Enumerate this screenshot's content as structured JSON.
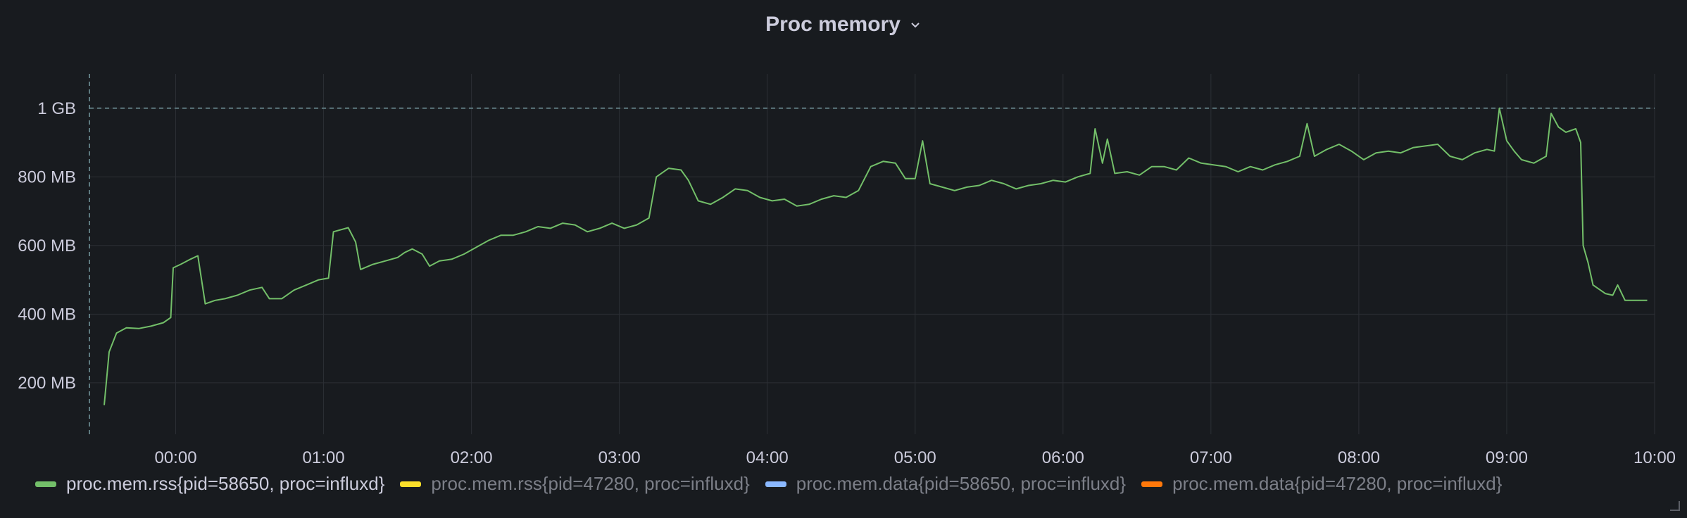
{
  "panel": {
    "title": "Proc memory"
  },
  "chart_data": {
    "type": "line",
    "title": "Proc memory",
    "y_unit": "MB",
    "ylim": [
      50,
      1100
    ],
    "y_ticks": [
      {
        "value": 200,
        "label": "200 MB"
      },
      {
        "value": 400,
        "label": "400 MB"
      },
      {
        "value": 600,
        "label": "600 MB"
      },
      {
        "value": 800,
        "label": "800 MB"
      },
      {
        "value": 1000,
        "label": "1 GB"
      }
    ],
    "xlim": [
      "23:25",
      "10:00"
    ],
    "x_ticks": [
      "00:00",
      "01:00",
      "02:00",
      "03:00",
      "04:00",
      "05:00",
      "06:00",
      "07:00",
      "08:00",
      "09:00",
      "10:00"
    ],
    "threshold": {
      "value": 1000,
      "style": "dashed"
    },
    "marker_time": "23:25",
    "grid": true,
    "legend_position": "bottom-left",
    "series": [
      {
        "name": "proc.mem.rss{pid=58650, proc=influxd}",
        "color": "#73bf69",
        "visible": true,
        "points": [
          [
            "23:31",
            135
          ],
          [
            "23:33",
            290
          ],
          [
            "23:36",
            345
          ],
          [
            "23:40",
            360
          ],
          [
            "23:45",
            358
          ],
          [
            "23:50",
            365
          ],
          [
            "23:55",
            375
          ],
          [
            "23:58",
            390
          ],
          [
            "23:59",
            535
          ],
          [
            "00:02",
            545
          ],
          [
            "00:06",
            560
          ],
          [
            "00:09",
            570
          ],
          [
            "00:12",
            430
          ],
          [
            "00:16",
            440
          ],
          [
            "00:20",
            445
          ],
          [
            "00:25",
            455
          ],
          [
            "00:30",
            470
          ],
          [
            "00:35",
            478
          ],
          [
            "00:38",
            445
          ],
          [
            "00:43",
            445
          ],
          [
            "00:48",
            470
          ],
          [
            "00:53",
            485
          ],
          [
            "00:58",
            500
          ],
          [
            "01:02",
            505
          ],
          [
            "01:04",
            640
          ],
          [
            "01:10",
            652
          ],
          [
            "01:13",
            610
          ],
          [
            "01:15",
            530
          ],
          [
            "01:20",
            545
          ],
          [
            "01:25",
            555
          ],
          [
            "01:30",
            565
          ],
          [
            "01:33",
            580
          ],
          [
            "01:36",
            590
          ],
          [
            "01:40",
            575
          ],
          [
            "01:43",
            540
          ],
          [
            "01:47",
            555
          ],
          [
            "01:52",
            560
          ],
          [
            "01:57",
            575
          ],
          [
            "02:02",
            595
          ],
          [
            "02:07",
            615
          ],
          [
            "02:12",
            630
          ],
          [
            "02:17",
            630
          ],
          [
            "02:22",
            640
          ],
          [
            "02:27",
            655
          ],
          [
            "02:32",
            650
          ],
          [
            "02:37",
            665
          ],
          [
            "02:42",
            660
          ],
          [
            "02:47",
            640
          ],
          [
            "02:52",
            650
          ],
          [
            "02:57",
            665
          ],
          [
            "03:02",
            650
          ],
          [
            "03:07",
            660
          ],
          [
            "03:12",
            680
          ],
          [
            "03:15",
            800
          ],
          [
            "03:20",
            825
          ],
          [
            "03:25",
            820
          ],
          [
            "03:28",
            790
          ],
          [
            "03:32",
            730
          ],
          [
            "03:37",
            720
          ],
          [
            "03:42",
            740
          ],
          [
            "03:47",
            765
          ],
          [
            "03:52",
            760
          ],
          [
            "03:57",
            740
          ],
          [
            "04:02",
            730
          ],
          [
            "04:07",
            735
          ],
          [
            "04:12",
            715
          ],
          [
            "04:17",
            720
          ],
          [
            "04:22",
            735
          ],
          [
            "04:27",
            745
          ],
          [
            "04:32",
            740
          ],
          [
            "04:37",
            760
          ],
          [
            "04:42",
            830
          ],
          [
            "04:47",
            845
          ],
          [
            "04:52",
            840
          ],
          [
            "04:56",
            795
          ],
          [
            "05:00",
            795
          ],
          [
            "05:03",
            905
          ],
          [
            "05:06",
            780
          ],
          [
            "05:11",
            770
          ],
          [
            "05:16",
            760
          ],
          [
            "05:21",
            770
          ],
          [
            "05:26",
            775
          ],
          [
            "05:31",
            790
          ],
          [
            "05:36",
            780
          ],
          [
            "05:41",
            765
          ],
          [
            "05:46",
            775
          ],
          [
            "05:51",
            780
          ],
          [
            "05:56",
            790
          ],
          [
            "06:01",
            785
          ],
          [
            "06:06",
            800
          ],
          [
            "06:11",
            810
          ],
          [
            "06:13",
            940
          ],
          [
            "06:16",
            840
          ],
          [
            "06:18",
            910
          ],
          [
            "06:21",
            810
          ],
          [
            "06:26",
            815
          ],
          [
            "06:31",
            805
          ],
          [
            "06:36",
            830
          ],
          [
            "06:41",
            830
          ],
          [
            "06:46",
            820
          ],
          [
            "06:51",
            855
          ],
          [
            "06:56",
            840
          ],
          [
            "07:01",
            835
          ],
          [
            "07:06",
            830
          ],
          [
            "07:11",
            815
          ],
          [
            "07:16",
            830
          ],
          [
            "07:21",
            820
          ],
          [
            "07:26",
            835
          ],
          [
            "07:31",
            845
          ],
          [
            "07:36",
            860
          ],
          [
            "07:39",
            955
          ],
          [
            "07:42",
            860
          ],
          [
            "07:47",
            880
          ],
          [
            "07:52",
            895
          ],
          [
            "07:57",
            875
          ],
          [
            "08:02",
            850
          ],
          [
            "08:07",
            870
          ],
          [
            "08:12",
            875
          ],
          [
            "08:17",
            870
          ],
          [
            "08:22",
            885
          ],
          [
            "08:27",
            890
          ],
          [
            "08:32",
            895
          ],
          [
            "08:37",
            860
          ],
          [
            "08:42",
            850
          ],
          [
            "08:47",
            870
          ],
          [
            "08:52",
            880
          ],
          [
            "08:55",
            875
          ],
          [
            "08:57",
            1000
          ],
          [
            "09:00",
            905
          ],
          [
            "09:03",
            875
          ],
          [
            "09:06",
            850
          ],
          [
            "09:11",
            840
          ],
          [
            "09:16",
            860
          ],
          [
            "09:18",
            985
          ],
          [
            "09:21",
            945
          ],
          [
            "09:24",
            930
          ],
          [
            "09:28",
            940
          ],
          [
            "09:30",
            900
          ],
          [
            "09:31",
            600
          ],
          [
            "09:33",
            550
          ],
          [
            "09:35",
            485
          ],
          [
            "09:40",
            460
          ],
          [
            "09:43",
            455
          ],
          [
            "09:45",
            485
          ],
          [
            "09:48",
            440
          ],
          [
            "09:53",
            440
          ],
          [
            "09:57",
            440
          ]
        ]
      },
      {
        "name": "proc.mem.rss{pid=47280, proc=influxd}",
        "color": "#fade2a",
        "visible": false,
        "points": []
      },
      {
        "name": "proc.mem.data{pid=58650, proc=influxd}",
        "color": "#8ab8ff",
        "visible": false,
        "points": []
      },
      {
        "name": "proc.mem.data{pid=47280, proc=influxd}",
        "color": "#ff780a",
        "visible": false,
        "points": []
      }
    ]
  }
}
